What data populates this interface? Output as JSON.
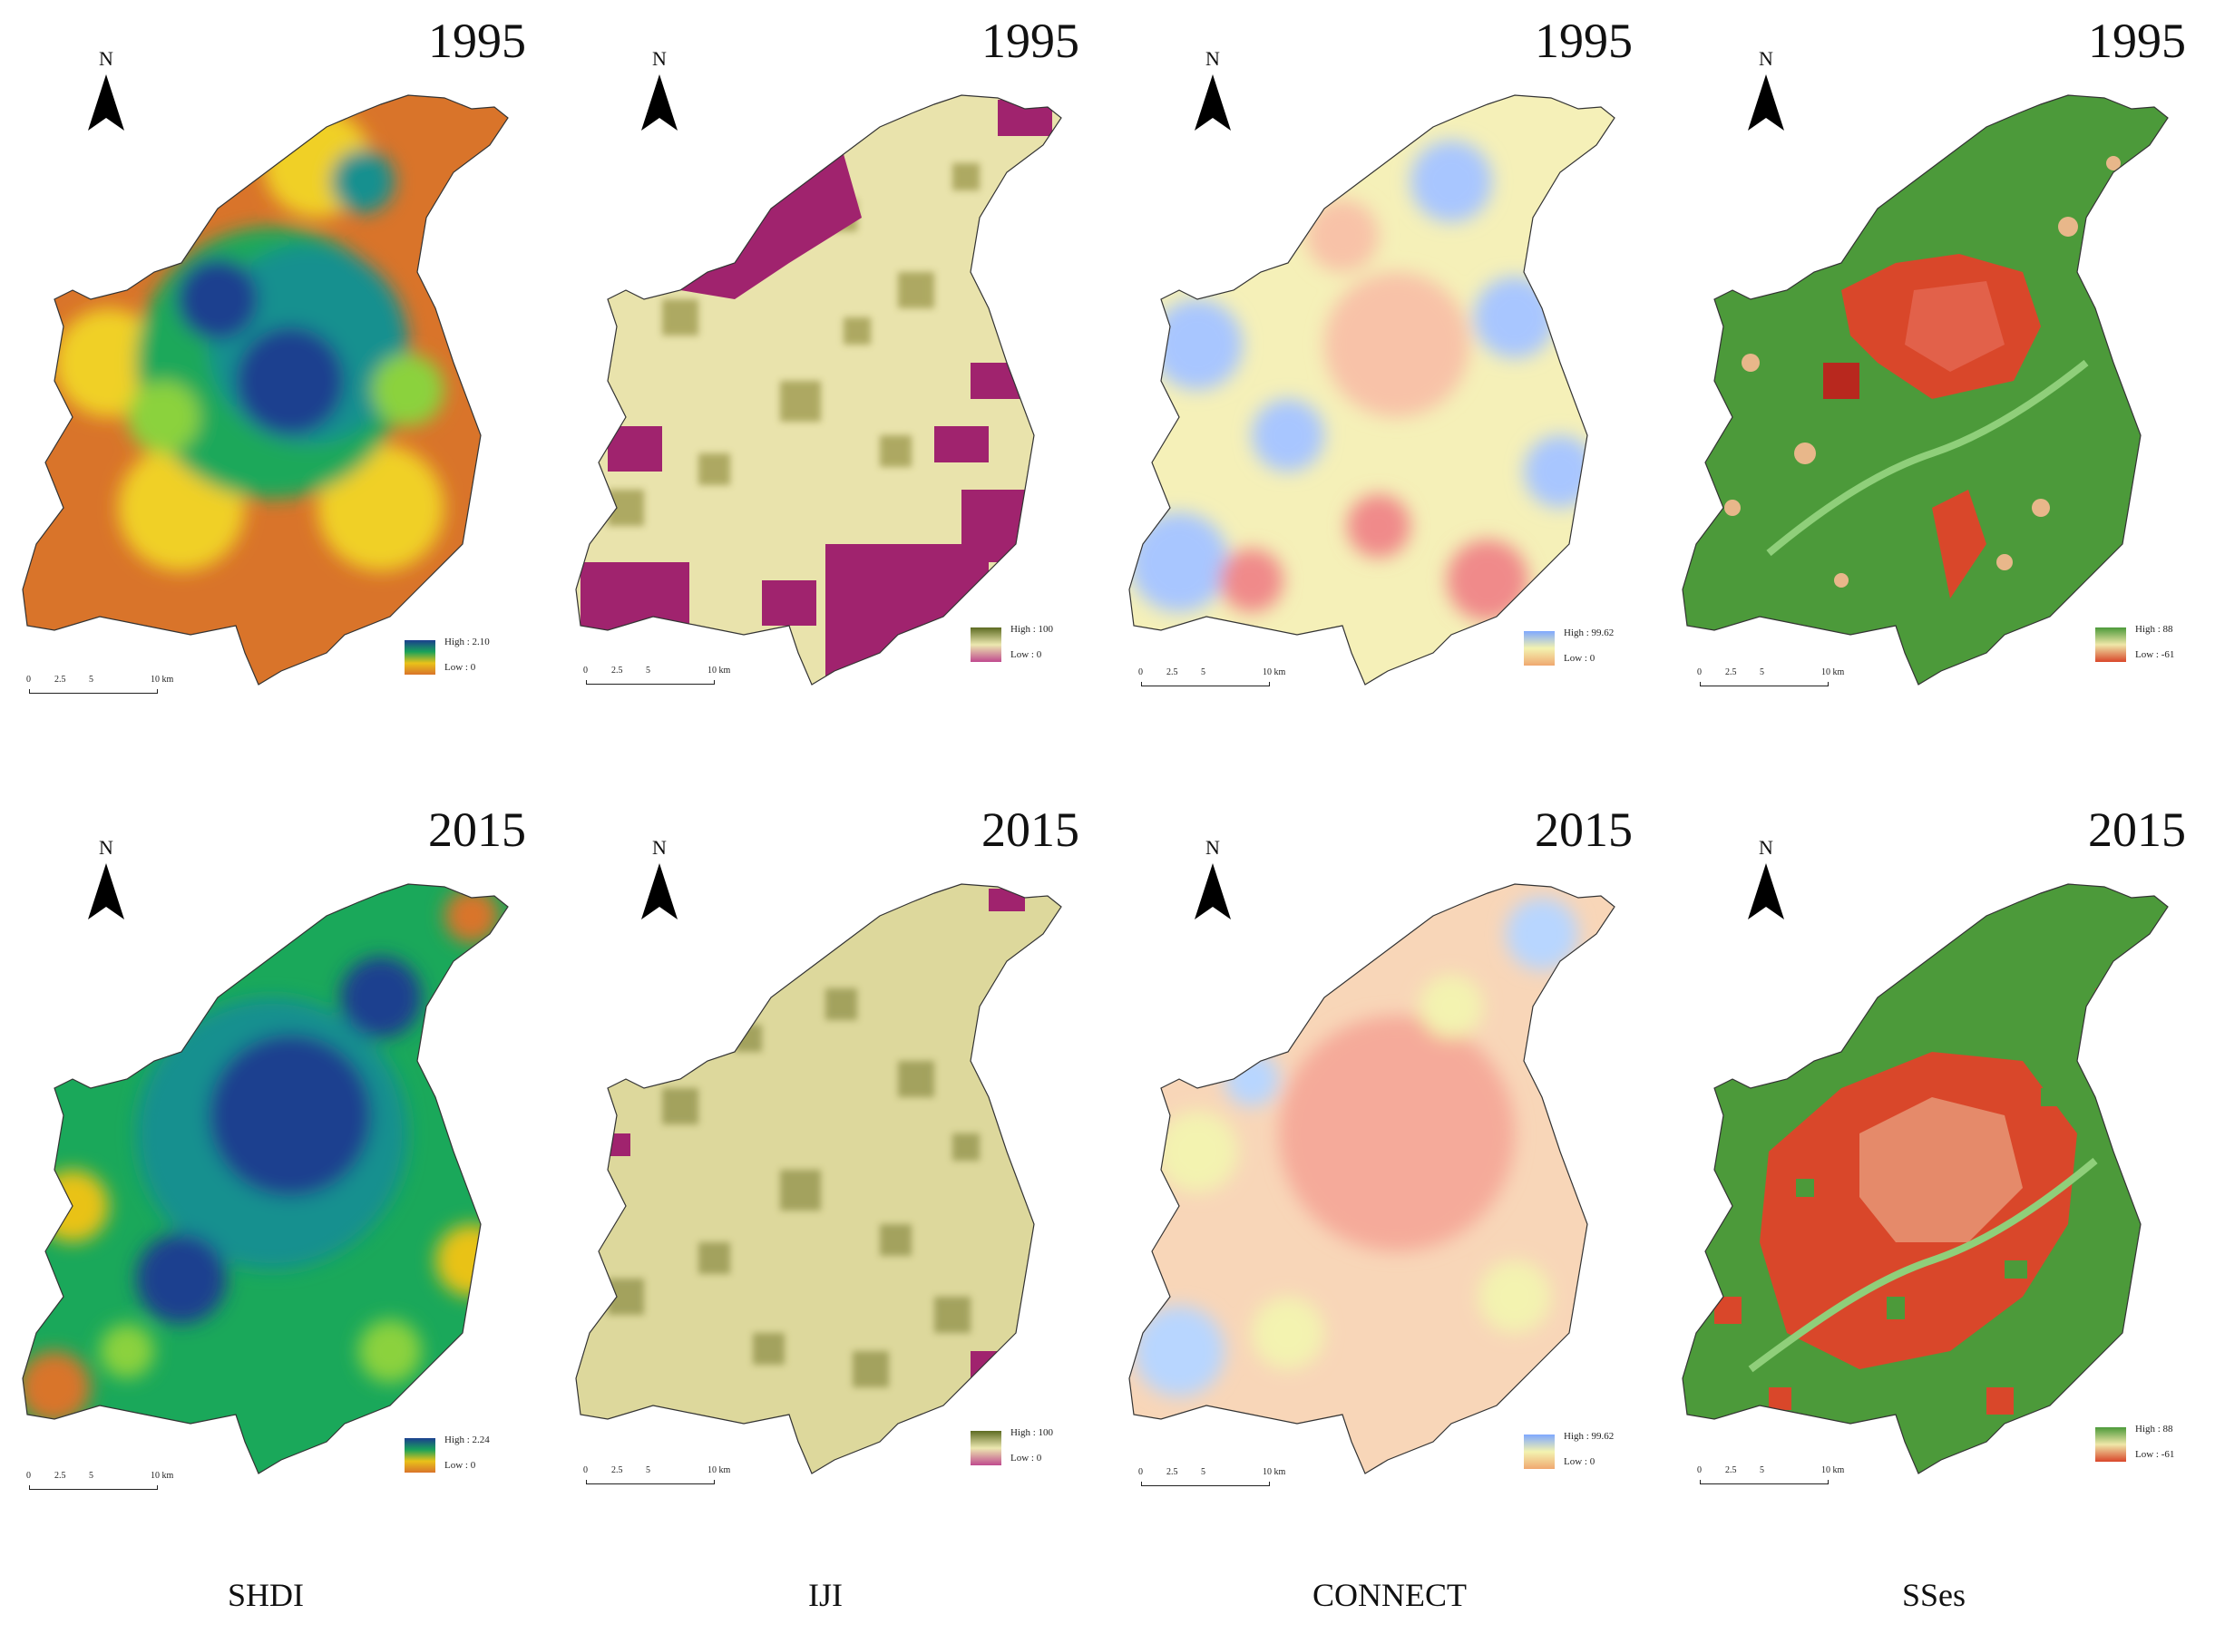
{
  "north_label": "N",
  "scale_labels": [
    "0",
    "2.5",
    "5",
    "10 km"
  ],
  "columns": [
    {
      "label": "SHDI",
      "legend_colors": [
        "#1b3f8f",
        "#19a25a",
        "#e9c219",
        "#d9742a"
      ]
    },
    {
      "label": "IJI",
      "legend_colors": [
        "#5d6b22",
        "#ece8b0",
        "#a0236e"
      ]
    },
    {
      "label": "CONNECT",
      "legend_colors": [
        "#7fa8ff",
        "#f3f3b0",
        "#f08a8a"
      ]
    },
    {
      "label": "SSes",
      "legend_colors": [
        "#4c9a3a",
        "#efe7a8",
        "#d9472a"
      ]
    }
  ],
  "panels": [
    {
      "year": "1995",
      "legend_high": "High : 2.10",
      "legend_low": "Low : 0"
    },
    {
      "year": "1995",
      "legend_high": "High : 100",
      "legend_low": "Low : 0"
    },
    {
      "year": "1995",
      "legend_high": "High : 99.62",
      "legend_low": "Low : 0"
    },
    {
      "year": "1995",
      "legend_high": "High : 88",
      "legend_low": "Low : -61"
    },
    {
      "year": "2015",
      "legend_high": "High : 2.24",
      "legend_low": "Low : 0"
    },
    {
      "year": "2015",
      "legend_high": "High : 100",
      "legend_low": "Low : 0"
    },
    {
      "year": "2015",
      "legend_high": "High : 99.62",
      "legend_low": "Low : 0"
    },
    {
      "year": "2015",
      "legend_high": "High : 88",
      "legend_low": "Low : -61"
    }
  ]
}
